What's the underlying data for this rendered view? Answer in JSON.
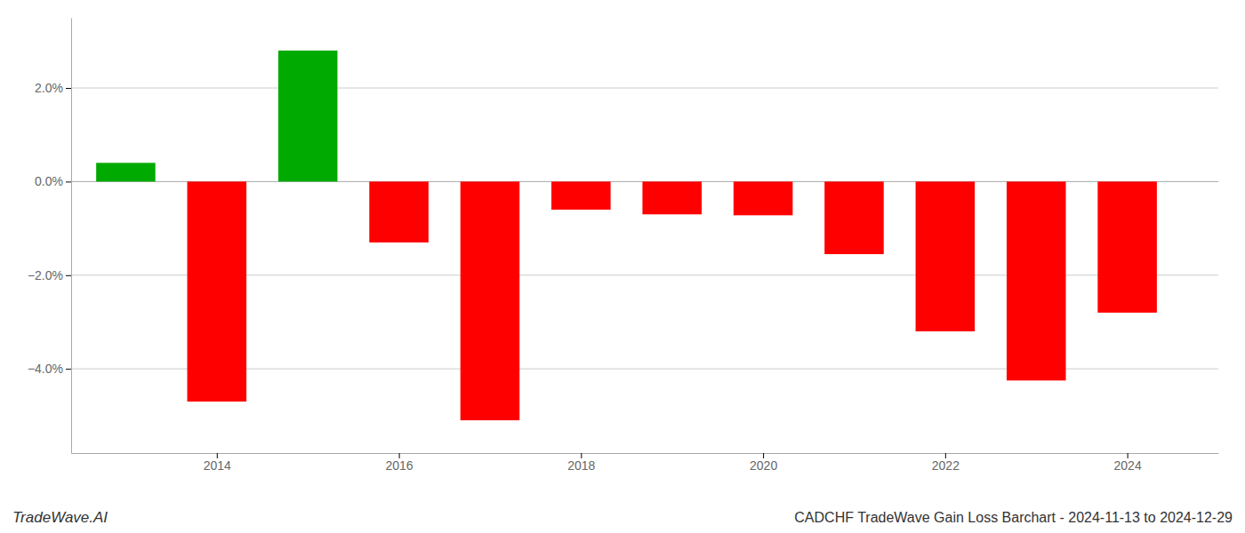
{
  "chart_data": {
    "type": "bar",
    "title": "CADCHF TradeWave Gain Loss Barchart - 2024-11-13 to 2024-12-29",
    "annotations": [
      "TradeWave.AI"
    ],
    "x": [
      2013,
      2014,
      2015,
      2016,
      2017,
      2018,
      2019,
      2020,
      2021,
      2022,
      2023,
      2024
    ],
    "values": [
      0.4,
      -4.7,
      2.8,
      -1.3,
      -5.1,
      -0.6,
      -0.7,
      -0.72,
      -1.55,
      -3.2,
      -4.25,
      -2.8
    ],
    "colors": [
      "#00aa00",
      "#ff0000",
      "#00aa00",
      "#ff0000",
      "#ff0000",
      "#ff0000",
      "#ff0000",
      "#ff0000",
      "#ff0000",
      "#ff0000",
      "#ff0000",
      "#ff0000"
    ],
    "xlim": [
      2012.4,
      2025.0
    ],
    "xticks": [
      2014,
      2016,
      2018,
      2020,
      2022,
      2024
    ],
    "ylim": [
      -5.8,
      3.5
    ],
    "yticks": [
      {
        "value": -4.0,
        "label": "−4.0%"
      },
      {
        "value": -2.0,
        "label": "−2.0%"
      },
      {
        "value": 0.0,
        "label": "0.0%"
      },
      {
        "value": 2.0,
        "label": "2.0%"
      }
    ],
    "grid": true
  }
}
